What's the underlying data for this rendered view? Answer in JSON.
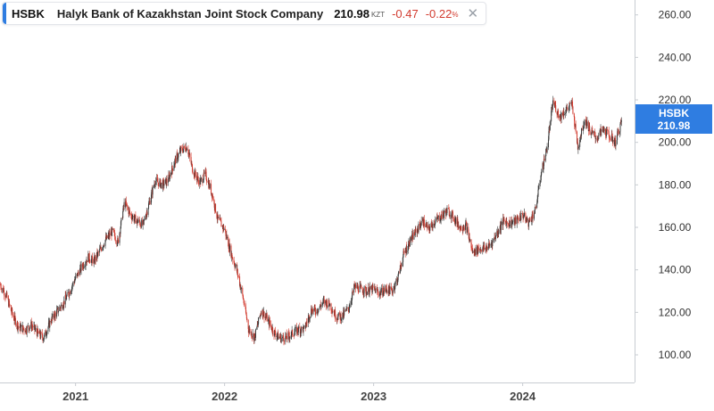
{
  "legend": {
    "symbol": "HSBK",
    "name": "Halyk Bank of Kazakhstan Joint Stock Company",
    "price": "210.98",
    "currency": "KZT",
    "change": "-0.47",
    "change_pct": "-0.22",
    "pct_sign": "%",
    "close_icon": "close-icon"
  },
  "price_tag": {
    "symbol": "HSBK",
    "price": "210.98"
  },
  "colors": {
    "up": "#3a3a3a",
    "down": "#d23b2f",
    "accent": "#2f7de1",
    "grid": "#e8eaee"
  },
  "chart_data": {
    "type": "line",
    "style": "candlestick",
    "title": "",
    "xlabel": "",
    "ylabel": "",
    "x_tick_labels": [
      "2021",
      "2022",
      "2023",
      "2024"
    ],
    "y_tick_labels": [
      "100.00",
      "120.00",
      "140.00",
      "160.00",
      "180.00",
      "200.00",
      "220.00",
      "240.00",
      "260.00"
    ],
    "y_ticks": [
      100,
      120,
      140,
      160,
      180,
      200,
      220,
      240,
      260
    ],
    "ylim": [
      87,
      267
    ],
    "xlim": [
      "2020-06-30",
      "2024-10-01"
    ],
    "grid": false,
    "series": [
      {
        "x": [
          "2020-07-01",
          "2020-07-15",
          "2020-08-01",
          "2020-08-15",
          "2020-09-01",
          "2020-09-15",
          "2020-10-01",
          "2020-10-15",
          "2020-11-01",
          "2020-11-15",
          "2020-12-01",
          "2020-12-15",
          "2021-01-01",
          "2021-01-15",
          "2021-02-01",
          "2021-02-15",
          "2021-03-01",
          "2021-03-15",
          "2021-04-01",
          "2021-04-15",
          "2021-05-01",
          "2021-05-15",
          "2021-06-01",
          "2021-06-15",
          "2021-07-01",
          "2021-07-15",
          "2021-08-01",
          "2021-08-15",
          "2021-09-01",
          "2021-09-15",
          "2021-10-01",
          "2021-10-15",
          "2021-11-01",
          "2021-11-15",
          "2021-12-01",
          "2021-12-15",
          "2022-01-01",
          "2022-01-15",
          "2022-02-01",
          "2022-02-15",
          "2022-03-01",
          "2022-03-15",
          "2022-04-01",
          "2022-04-15",
          "2022-05-01",
          "2022-05-15",
          "2022-06-01",
          "2022-06-15",
          "2022-07-01",
          "2022-07-15",
          "2022-08-01",
          "2022-08-15",
          "2022-09-01",
          "2022-09-15",
          "2022-10-01",
          "2022-10-15",
          "2022-11-01",
          "2022-11-15",
          "2022-12-01",
          "2022-12-15",
          "2023-01-01",
          "2023-01-15",
          "2023-02-01",
          "2023-02-15",
          "2023-03-01",
          "2023-03-15",
          "2023-04-01",
          "2023-04-15",
          "2023-05-01",
          "2023-05-15",
          "2023-06-01",
          "2023-06-15",
          "2023-07-01",
          "2023-07-15",
          "2023-08-01",
          "2023-08-15",
          "2023-09-01",
          "2023-09-15",
          "2023-10-01",
          "2023-10-15",
          "2023-11-01",
          "2023-11-15",
          "2023-12-01",
          "2023-12-15",
          "2024-01-01",
          "2024-01-15",
          "2024-02-01",
          "2024-02-15",
          "2024-03-01",
          "2024-03-15",
          "2024-04-01",
          "2024-04-15",
          "2024-05-01",
          "2024-05-15",
          "2024-06-01",
          "2024-06-15",
          "2024-07-01",
          "2024-07-15",
          "2024-08-01",
          "2024-08-15",
          "2024-09-01"
        ],
        "y": [
          133,
          128,
          118,
          113,
          112,
          114,
          110,
          108,
          116,
          120,
          124,
          129,
          136,
          141,
          146,
          144,
          149,
          154,
          158,
          153,
          172,
          166,
          163,
          161,
          172,
          182,
          180,
          182,
          191,
          196,
          198,
          187,
          181,
          185,
          176,
          164,
          159,
          149,
          139,
          127,
          112,
          108,
          121,
          117,
          111,
          108,
          108,
          110,
          112,
          112,
          121,
          121,
          125,
          124,
          118,
          118,
          122,
          132,
          131,
          130,
          131,
          129,
          131,
          130,
          136,
          147,
          154,
          158,
          163,
          159,
          163,
          165,
          168,
          165,
          160,
          161,
          148,
          150,
          150,
          152,
          158,
          163,
          162,
          163,
          166,
          162,
          168,
          185,
          198,
          219,
          212,
          215,
          218,
          198,
          211,
          205,
          202,
          206,
          203,
          200,
          211
        ]
      }
    ]
  }
}
